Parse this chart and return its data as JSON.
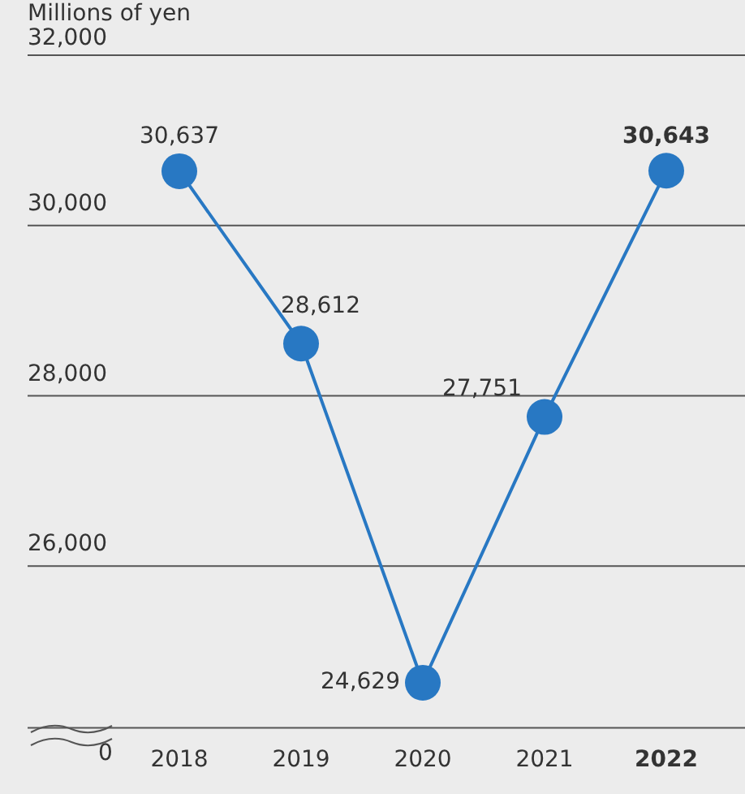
{
  "chart_data": {
    "type": "line",
    "ylabel": "Millions of yen",
    "categories": [
      "2018",
      "2019",
      "2020",
      "2021",
      "2022"
    ],
    "series": [
      {
        "color": "#2878c3",
        "values": [
          30637,
          28612,
          24629,
          27751,
          30643
        ],
        "value_labels": [
          "30,637",
          "28,612",
          "24,629",
          "27,751",
          "30,643"
        ]
      }
    ],
    "ylim": [
      24100,
      32000
    ],
    "yticks": [
      {
        "value": 26000,
        "label": "26,000"
      },
      {
        "value": 28000,
        "label": "28,000"
      },
      {
        "value": 30000,
        "label": "30,000"
      },
      {
        "value": 32000,
        "label": "32,000"
      }
    ],
    "annotations": [
      "0"
    ],
    "grid": "y",
    "legend": false,
    "marker": "circle",
    "line_style": "solid"
  }
}
